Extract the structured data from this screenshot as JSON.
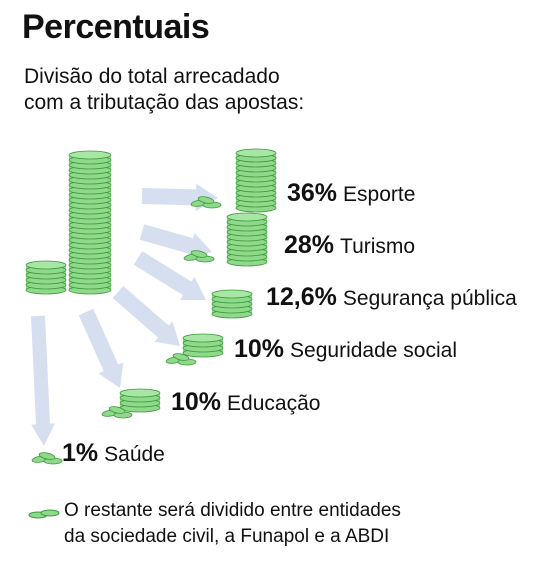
{
  "title": "Percentuais",
  "subtitle_line1": "Divisão do total arrecadado",
  "subtitle_line2": "com a tributação das apostas:",
  "colors": {
    "coin_fill": "#8fd98a",
    "coin_edge": "#3f9a3f",
    "arrow": "#d6dff0"
  },
  "chart_data": {
    "type": "bar",
    "categories": [
      "Esporte",
      "Turismo",
      "Segurança pública",
      "Seguridade social",
      "Educação",
      "Saúde"
    ],
    "values": [
      36,
      28,
      12.6,
      10,
      10,
      1
    ],
    "value_labels": [
      "36%",
      "28%",
      "12,6%",
      "10%",
      "10%",
      "1%"
    ],
    "unit": "%"
  },
  "footnote_line1": "O restante será dividido entre entidades",
  "footnote_line2": "da sociedade civil, a Funapol e a ABDI"
}
